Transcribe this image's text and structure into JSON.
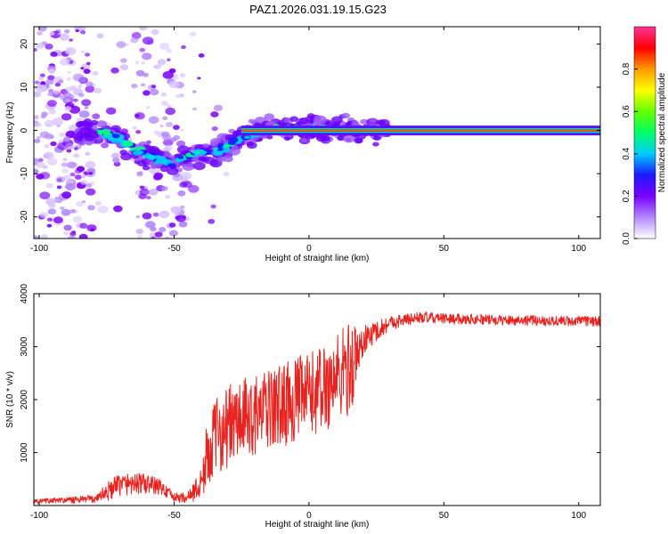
{
  "title": "PAZ1.2026.031.19.15.G23",
  "chart_data": [
    {
      "type": "heatmap",
      "description_of_feature": "spectrogram ridge of normalized spectral amplitude vs height",
      "xlabel": "Height of straight line (km)",
      "ylabel": "Frequency (Hz)",
      "xlim": [
        -102,
        108
      ],
      "ylim": [
        -25,
        24
      ],
      "xticks": [
        "-100",
        "-50",
        "0",
        "50",
        "100"
      ],
      "xtick_values": [
        -100,
        -50,
        0,
        50,
        100
      ],
      "yticks": [
        "20",
        "10",
        "0",
        "-10",
        "-20"
      ],
      "ytick_values": [
        20,
        10,
        0,
        -10,
        -20
      ],
      "ridge": {
        "x": [
          -80,
          -75,
          -70,
          -65,
          -60,
          -55,
          -50,
          -45,
          -40,
          -35,
          -30,
          -25,
          -20,
          -15,
          -10,
          -5,
          0,
          5,
          10,
          15,
          20,
          108
        ],
        "y": [
          0,
          -1,
          -2,
          -4,
          -5.5,
          -7,
          -7.5,
          -6,
          -5,
          -5,
          -3.5,
          -2,
          -0.5,
          -0.2,
          0.5,
          0.3,
          0.3,
          0.2,
          0.1,
          0,
          0,
          0
        ]
      },
      "colorbar": {
        "label": "Normalized spectral amplitude",
        "ticks": [
          "0.0",
          "0.2",
          "0.4",
          "0.6",
          "0.8"
        ],
        "tick_values": [
          0.0,
          0.2,
          0.4,
          0.6,
          0.8
        ],
        "range": [
          0,
          1
        ],
        "colors": [
          "#ffffff",
          "#b388ff",
          "#7a00ff",
          "#1a1aff",
          "#00ccff",
          "#00ff66",
          "#66ff00",
          "#ffff00",
          "#ff9900",
          "#ff0000",
          "#ff3399"
        ]
      }
    },
    {
      "type": "line",
      "xlabel": "Height of straight line (km)",
      "ylabel": "SNR (10 * v/v)",
      "xlim": [
        -102,
        108
      ],
      "ylim": [
        0,
        4000
      ],
      "xticks": [
        "-100",
        "-50",
        "0",
        "50",
        "100"
      ],
      "xtick_values": [
        -100,
        -50,
        0,
        50,
        100
      ],
      "yticks": [
        "1000",
        "2000",
        "3000",
        "4000"
      ],
      "ytick_values": [
        1000,
        2000,
        3000,
        4000
      ],
      "series": [
        {
          "name": "SNR",
          "color": "#e8231f",
          "envelope_x": [
            -102,
            -90,
            -80,
            -75,
            -70,
            -65,
            -60,
            -55,
            -50,
            -45,
            -40,
            -38,
            -35,
            -30,
            -25,
            -20,
            -15,
            -10,
            -5,
            0,
            5,
            10,
            15,
            18,
            20,
            25,
            30,
            35,
            40,
            50,
            60,
            70,
            80,
            90,
            100,
            108
          ],
          "envelope_y": [
            80,
            100,
            120,
            250,
            400,
            420,
            400,
            350,
            150,
            150,
            400,
            900,
            1300,
            1500,
            1600,
            1700,
            1800,
            1900,
            2000,
            2100,
            2200,
            2400,
            2600,
            2800,
            3100,
            3300,
            3450,
            3500,
            3550,
            3530,
            3520,
            3500,
            3500,
            3490,
            3480,
            3480
          ],
          "noise_amplitude": [
            40,
            60,
            80,
            180,
            220,
            220,
            200,
            150,
            90,
            100,
            300,
            600,
            700,
            800,
            800,
            750,
            750,
            800,
            800,
            800,
            850,
            900,
            900,
            700,
            300,
            200,
            150,
            120,
            110,
            100,
            100,
            100,
            100,
            100,
            100,
            100
          ]
        }
      ]
    }
  ]
}
